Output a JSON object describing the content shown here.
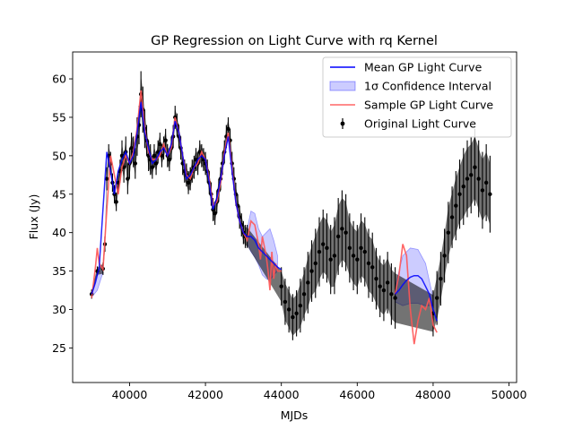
{
  "chart_data": {
    "type": "line",
    "title": "GP Regression on Light Curve with rq Kernel",
    "xlabel": "MJDs",
    "ylabel": "Flux (Jy)",
    "xlim": [
      38500,
      50200
    ],
    "ylim": [
      20.5,
      63.5
    ],
    "xticks": [
      40000,
      42000,
      44000,
      46000,
      48000,
      50000
    ],
    "yticks": [
      25,
      30,
      35,
      40,
      45,
      50,
      55,
      60
    ],
    "grid": false,
    "legend_position": "top-right",
    "series": [
      {
        "name": "Mean GP Light Curve",
        "color": "#0000ff",
        "x": [
          39000,
          39100,
          39200,
          39300,
          39400,
          39500,
          39600,
          39700,
          39800,
          39900,
          40000,
          40100,
          40200,
          40300,
          40400,
          40500,
          40600,
          40700,
          40800,
          40900,
          41000,
          41100,
          41200,
          41300,
          41400,
          41500,
          41600,
          41700,
          41800,
          41900,
          42000,
          42100,
          42200,
          42300,
          42400,
          42500,
          42600,
          42700,
          42800,
          42900,
          43000,
          43100,
          43200,
          43300,
          43400,
          43500,
          43600,
          43700,
          43800,
          43900,
          44000,
          47000,
          47100,
          47200,
          47300,
          47400,
          47500,
          47600,
          47700,
          47800,
          47900,
          48000,
          48100
        ],
        "y": [
          32.0,
          33.5,
          35.5,
          43.0,
          50.5,
          48.0,
          45.0,
          48.0,
          49.5,
          50.5,
          49.0,
          50.0,
          53.0,
          57.0,
          53.0,
          51.0,
          49.0,
          49.5,
          50.5,
          51.0,
          50.0,
          51.5,
          54.5,
          53.0,
          50.0,
          47.0,
          47.5,
          48.5,
          49.5,
          50.0,
          49.5,
          46.5,
          43.0,
          44.5,
          47.0,
          50.0,
          52.5,
          48.0,
          44.0,
          41.5,
          40.0,
          39.5,
          39.5,
          39.0,
          38.0,
          37.5,
          37.0,
          36.5,
          36.0,
          35.5,
          35.2,
          32.0,
          32.5,
          33.2,
          33.8,
          34.2,
          34.4,
          34.4,
          34.0,
          33.0,
          32.0,
          30.0,
          28.5
        ]
      },
      {
        "name": "1σ Confidence Interval",
        "color": "#0000ff",
        "alpha": 0.2,
        "gaps": [
          {
            "x": [
              39000,
              39150,
              39300
            ],
            "upper": [
              32.2,
              35.0,
              35.8
            ],
            "lower": [
              31.6,
              32.5,
              34.8
            ]
          },
          {
            "x": [
              43100,
              43200,
              43300,
              43400,
              43500,
              43600,
              43700,
              43800,
              43900
            ],
            "upper": [
              40.5,
              42.8,
              42.5,
              40.5,
              39.5,
              40.0,
              40.5,
              39.0,
              37.0
            ],
            "lower": [
              38.5,
              37.5,
              36.8,
              35.8,
              34.5,
              34.0,
              33.8,
              34.5,
              35.0
            ]
          },
          {
            "x": [
              47000,
              47200,
              47400,
              47600,
              47800,
              48000
            ],
            "upper": [
              33.0,
              37.0,
              38.0,
              37.8,
              36.0,
              31.5
            ],
            "lower": [
              31.0,
              30.5,
              30.8,
              30.8,
              30.5,
              30.5
            ]
          }
        ]
      },
      {
        "name": "Sample GP Light Curve",
        "color": "#ff5555",
        "x": [
          39000,
          39100,
          39150,
          39200,
          39300,
          39400,
          39500,
          39600,
          39700,
          39800,
          39900,
          40000,
          40100,
          40200,
          40300,
          40400,
          40500,
          40600,
          40700,
          40800,
          40900,
          41000,
          41100,
          41200,
          41300,
          41400,
          41500,
          41600,
          41700,
          41800,
          41900,
          42000,
          42100,
          42200,
          42300,
          42400,
          42500,
          42600,
          42700,
          42800,
          42900,
          43000,
          43100,
          43200,
          43300,
          43400,
          43450,
          43500,
          43600,
          43650,
          43700,
          43750,
          43800,
          43850,
          43900,
          44000,
          47000,
          47100,
          47200,
          47300,
          47400,
          47500,
          47600,
          47700,
          47800,
          47900,
          48000,
          48100
        ],
        "y": [
          31.5,
          35.5,
          38.0,
          36.0,
          35.2,
          43.0,
          50.0,
          47.5,
          45.0,
          48.5,
          50.0,
          49.0,
          50.5,
          53.5,
          58.5,
          53.5,
          50.5,
          49.5,
          49.5,
          50.0,
          51.5,
          50.0,
          51.0,
          55.0,
          53.0,
          50.0,
          47.5,
          47.0,
          48.5,
          49.0,
          50.5,
          49.5,
          47.0,
          43.5,
          44.0,
          46.5,
          50.5,
          53.0,
          48.5,
          44.0,
          41.5,
          40.0,
          39.0,
          41.5,
          41.0,
          38.5,
          36.5,
          39.5,
          37.0,
          35.0,
          32.5,
          37.5,
          34.0,
          36.0,
          35.0,
          35.0,
          32.0,
          34.5,
          38.5,
          37.0,
          30.0,
          25.5,
          28.5,
          30.5,
          30.0,
          31.5,
          28.0,
          27.0
        ]
      },
      {
        "name": "Original Light Curve",
        "color": "#000000",
        "x": [
          39000,
          39150,
          39300,
          39350,
          39400,
          39450,
          39500,
          39550,
          39600,
          39650,
          39700,
          39750,
          39800,
          39850,
          39900,
          39950,
          40000,
          40050,
          40100,
          40150,
          40200,
          40250,
          40300,
          40350,
          40400,
          40450,
          40500,
          40550,
          40600,
          40650,
          40700,
          40750,
          40800,
          40850,
          40900,
          40950,
          41000,
          41050,
          41100,
          41150,
          41200,
          41250,
          41300,
          41350,
          41400,
          41450,
          41500,
          41550,
          41600,
          41650,
          41700,
          41750,
          41800,
          41850,
          41900,
          41950,
          42000,
          42050,
          42100,
          42150,
          42200,
          42250,
          42300,
          42350,
          42400,
          42450,
          42500,
          42550,
          42600,
          42650,
          42700,
          42750,
          42800,
          42850,
          42900,
          42950,
          43000,
          43050,
          43100,
          44000,
          44100,
          44200,
          44300,
          44400,
          44500,
          44600,
          44700,
          44800,
          44900,
          45000,
          45100,
          45200,
          45300,
          45400,
          45500,
          45600,
          45700,
          45800,
          45900,
          46000,
          46100,
          46200,
          46300,
          46400,
          46500,
          46600,
          46700,
          46800,
          46900,
          47000,
          48000,
          48100,
          48200,
          48300,
          48400,
          48500,
          48600,
          48700,
          48800,
          48900,
          49000,
          49100,
          49200,
          49300,
          49400,
          49500
        ],
        "y": [
          32.0,
          35.0,
          35.3,
          38.5,
          47.0,
          50.0,
          49.0,
          46.5,
          45.0,
          44.0,
          46.5,
          48.0,
          50.0,
          48.5,
          50.5,
          47.0,
          49.0,
          51.0,
          50.5,
          49.0,
          52.5,
          54.0,
          58.0,
          56.0,
          53.5,
          52.0,
          50.0,
          49.5,
          48.5,
          50.0,
          49.0,
          50.5,
          51.5,
          50.0,
          51.0,
          52.0,
          50.0,
          49.5,
          51.0,
          52.5,
          55.0,
          54.0,
          52.5,
          51.0,
          49.0,
          48.0,
          47.5,
          46.5,
          47.0,
          48.0,
          48.5,
          49.5,
          49.0,
          50.5,
          50.0,
          49.5,
          49.0,
          48.0,
          46.5,
          45.0,
          43.0,
          42.5,
          44.0,
          45.5,
          47.0,
          49.0,
          50.5,
          52.5,
          53.5,
          52.0,
          49.0,
          47.0,
          45.0,
          43.5,
          42.0,
          41.0,
          40.0,
          39.5,
          39.5,
          33.0,
          31.0,
          30.0,
          29.0,
          29.5,
          30.5,
          32.0,
          33.5,
          35.0,
          36.0,
          37.5,
          38.5,
          38.0,
          36.5,
          37.0,
          39.5,
          40.5,
          40.0,
          38.0,
          37.0,
          36.5,
          38.0,
          37.5,
          36.0,
          35.5,
          34.0,
          33.0,
          32.5,
          33.5,
          32.0,
          31.5,
          29.5,
          31.5,
          34.0,
          37.0,
          40.0,
          42.0,
          43.5,
          45.0,
          46.0,
          47.0,
          47.5,
          48.5,
          47.0,
          45.5,
          46.5,
          45.0
        ],
        "yerr": [
          0.6,
          0.6,
          0.8,
          1.0,
          1.5,
          1.5,
          1.5,
          1.2,
          1.2,
          1.2,
          1.5,
          1.5,
          2.0,
          2.0,
          2.0,
          2.0,
          2.0,
          2.0,
          2.0,
          2.0,
          2.5,
          2.5,
          3.0,
          3.0,
          2.5,
          2.0,
          2.0,
          2.0,
          1.5,
          1.5,
          1.5,
          1.5,
          1.5,
          1.5,
          1.5,
          1.5,
          1.5,
          1.5,
          1.5,
          1.5,
          1.5,
          1.5,
          1.5,
          1.5,
          1.5,
          1.5,
          1.5,
          1.5,
          1.5,
          1.5,
          1.5,
          1.5,
          1.5,
          1.5,
          1.5,
          1.5,
          1.5,
          1.5,
          1.5,
          1.5,
          1.5,
          1.5,
          1.5,
          1.5,
          1.5,
          1.5,
          1.5,
          1.5,
          1.5,
          1.5,
          1.5,
          1.5,
          1.5,
          1.5,
          1.5,
          1.5,
          1.5,
          1.5,
          1.5,
          2.5,
          3.0,
          3.0,
          3.0,
          3.0,
          3.5,
          3.5,
          4.0,
          4.0,
          4.5,
          4.5,
          4.5,
          4.5,
          4.5,
          5.0,
          5.0,
          5.0,
          5.0,
          4.5,
          4.5,
          4.5,
          4.5,
          4.5,
          4.5,
          4.5,
          4.0,
          4.0,
          4.0,
          4.0,
          4.0,
          4.0,
          3.0,
          3.5,
          3.5,
          3.5,
          4.0,
          4.0,
          4.5,
          4.5,
          5.0,
          5.0,
          5.0,
          5.0,
          5.0,
          5.0,
          5.0,
          5.0
        ]
      }
    ],
    "legend": [
      {
        "label": "Mean GP Light Curve",
        "kind": "line",
        "color": "#0000ff"
      },
      {
        "label": "1σ Confidence Interval",
        "kind": "patch",
        "color": "#0000ff"
      },
      {
        "label": "Sample GP Light Curve",
        "kind": "line",
        "color": "#ff5555"
      },
      {
        "label": "Original Light Curve",
        "kind": "errorbar",
        "color": "#000000"
      }
    ]
  }
}
